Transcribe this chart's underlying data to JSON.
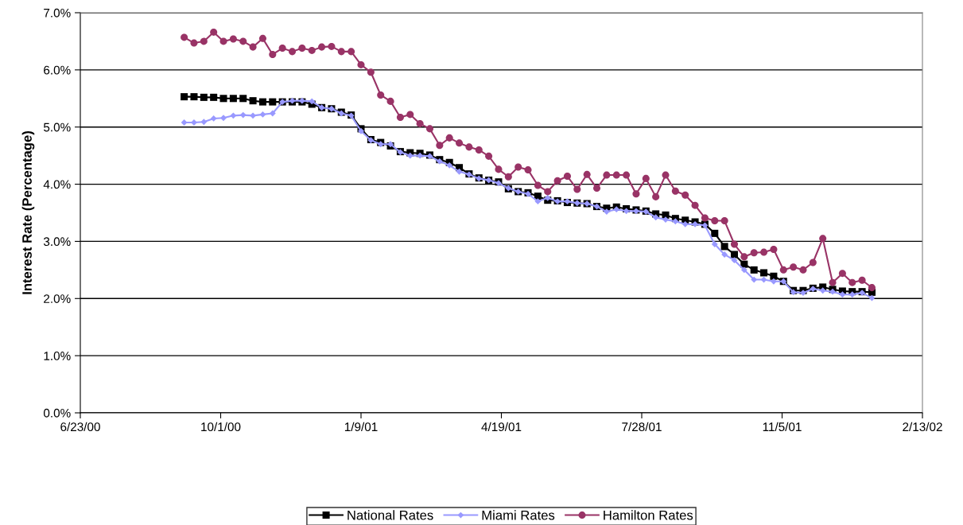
{
  "chart_data": {
    "type": "line",
    "ylabel": "Interest Rate (Percentage)",
    "x": [
      "2000-09-05",
      "2000-09-12",
      "2000-09-19",
      "2000-09-26",
      "2000-10-03",
      "2000-10-10",
      "2000-10-17",
      "2000-10-24",
      "2000-10-31",
      "2000-11-07",
      "2000-11-14",
      "2000-11-21",
      "2000-11-28",
      "2000-12-05",
      "2000-12-12",
      "2000-12-19",
      "2000-12-26",
      "2001-01-02",
      "2001-01-09",
      "2001-01-16",
      "2001-01-23",
      "2001-01-30",
      "2001-02-06",
      "2001-02-13",
      "2001-02-20",
      "2001-02-27",
      "2001-03-06",
      "2001-03-13",
      "2001-03-20",
      "2001-03-27",
      "2001-04-03",
      "2001-04-10",
      "2001-04-17",
      "2001-04-24",
      "2001-05-01",
      "2001-05-08",
      "2001-05-15",
      "2001-05-22",
      "2001-05-29",
      "2001-06-05",
      "2001-06-12",
      "2001-06-19",
      "2001-06-26",
      "2001-07-03",
      "2001-07-10",
      "2001-07-17",
      "2001-07-24",
      "2001-07-31",
      "2001-08-07",
      "2001-08-14",
      "2001-08-21",
      "2001-08-28",
      "2001-09-04",
      "2001-09-11",
      "2001-09-18",
      "2001-09-25",
      "2001-10-02",
      "2001-10-09",
      "2001-10-16",
      "2001-10-23",
      "2001-10-30",
      "2001-11-06",
      "2001-11-13",
      "2001-11-20",
      "2001-11-27",
      "2001-12-04",
      "2001-12-11",
      "2001-12-18",
      "2001-12-25",
      "2002-01-01",
      "2002-01-08"
    ],
    "series": [
      {
        "name": "National Rates",
        "color": "#000000",
        "marker": "square",
        "values": [
          5.53,
          5.53,
          5.52,
          5.52,
          5.5,
          5.5,
          5.5,
          5.46,
          5.44,
          5.44,
          5.44,
          5.44,
          5.44,
          5.4,
          5.34,
          5.32,
          5.26,
          5.21,
          4.97,
          4.78,
          4.73,
          4.67,
          4.57,
          4.55,
          4.54,
          4.51,
          4.43,
          4.38,
          4.29,
          4.18,
          4.11,
          4.07,
          4.04,
          3.92,
          3.87,
          3.85,
          3.79,
          3.72,
          3.71,
          3.68,
          3.67,
          3.66,
          3.61,
          3.58,
          3.6,
          3.57,
          3.55,
          3.53,
          3.48,
          3.46,
          3.4,
          3.37,
          3.34,
          3.3,
          3.14,
          2.91,
          2.77,
          2.6,
          2.5,
          2.45,
          2.39,
          2.3,
          2.14,
          2.14,
          2.18,
          2.2,
          2.16,
          2.13,
          2.12,
          2.12,
          2.11
        ]
      },
      {
        "name": "Miami Rates",
        "color": "#9999ff",
        "marker": "diamond",
        "values": [
          5.08,
          5.08,
          5.09,
          5.15,
          5.16,
          5.2,
          5.21,
          5.2,
          5.22,
          5.24,
          5.44,
          5.46,
          5.46,
          5.45,
          5.34,
          5.32,
          5.24,
          5.2,
          4.93,
          4.77,
          4.7,
          4.7,
          4.56,
          4.5,
          4.5,
          4.49,
          4.4,
          4.33,
          4.22,
          4.17,
          4.1,
          4.07,
          4.02,
          3.93,
          3.87,
          3.83,
          3.7,
          3.76,
          3.7,
          3.7,
          3.67,
          3.66,
          3.61,
          3.52,
          3.56,
          3.53,
          3.53,
          3.52,
          3.42,
          3.38,
          3.35,
          3.3,
          3.3,
          3.28,
          2.95,
          2.77,
          2.67,
          2.5,
          2.33,
          2.33,
          2.3,
          2.3,
          2.11,
          2.1,
          2.17,
          2.14,
          2.12,
          2.07,
          2.07,
          2.1,
          2.01
        ]
      },
      {
        "name": "Hamilton Rates",
        "color": "#993366",
        "marker": "circle",
        "values": [
          6.57,
          6.47,
          6.5,
          6.66,
          6.5,
          6.54,
          6.5,
          6.4,
          6.55,
          6.27,
          6.38,
          6.32,
          6.38,
          6.34,
          6.4,
          6.41,
          6.32,
          6.32,
          6.09,
          5.96,
          5.56,
          5.45,
          5.17,
          5.22,
          5.06,
          4.97,
          4.68,
          4.81,
          4.72,
          4.65,
          4.6,
          4.49,
          4.26,
          4.13,
          4.3,
          4.25,
          3.98,
          3.87,
          4.06,
          4.14,
          3.91,
          4.17,
          3.93,
          4.16,
          4.16,
          4.16,
          3.83,
          4.1,
          3.78,
          4.16,
          3.88,
          3.81,
          3.63,
          3.41,
          3.36,
          3.36,
          2.95,
          2.73,
          2.8,
          2.81,
          2.86,
          2.5,
          2.55,
          2.5,
          2.63,
          3.05,
          2.28,
          2.44,
          2.28,
          2.32,
          2.19
        ]
      }
    ],
    "xlim": [
      "2000-06-23",
      "2002-02-13"
    ],
    "xticks": [
      {
        "value": "2000-06-23",
        "label": "6/23/00"
      },
      {
        "value": "2000-10-01",
        "label": "10/1/00"
      },
      {
        "value": "2001-01-09",
        "label": "1/9/01"
      },
      {
        "value": "2001-04-19",
        "label": "4/19/01"
      },
      {
        "value": "2001-07-28",
        "label": "7/28/01"
      },
      {
        "value": "2001-11-05",
        "label": "11/5/01"
      },
      {
        "value": "2002-02-13",
        "label": "2/13/02"
      }
    ],
    "ylim": [
      0,
      7
    ],
    "yticks": [
      {
        "value": 0,
        "label": "0.0%"
      },
      {
        "value": 1,
        "label": "1.0%"
      },
      {
        "value": 2,
        "label": "2.0%"
      },
      {
        "value": 3,
        "label": "3.0%"
      },
      {
        "value": 4,
        "label": "4.0%"
      },
      {
        "value": 5,
        "label": "5.0%"
      },
      {
        "value": 6,
        "label": "6.0%"
      },
      {
        "value": 7,
        "label": "7.0%"
      }
    ],
    "grid": "y",
    "legend": "bottom",
    "line_style": "solid"
  }
}
